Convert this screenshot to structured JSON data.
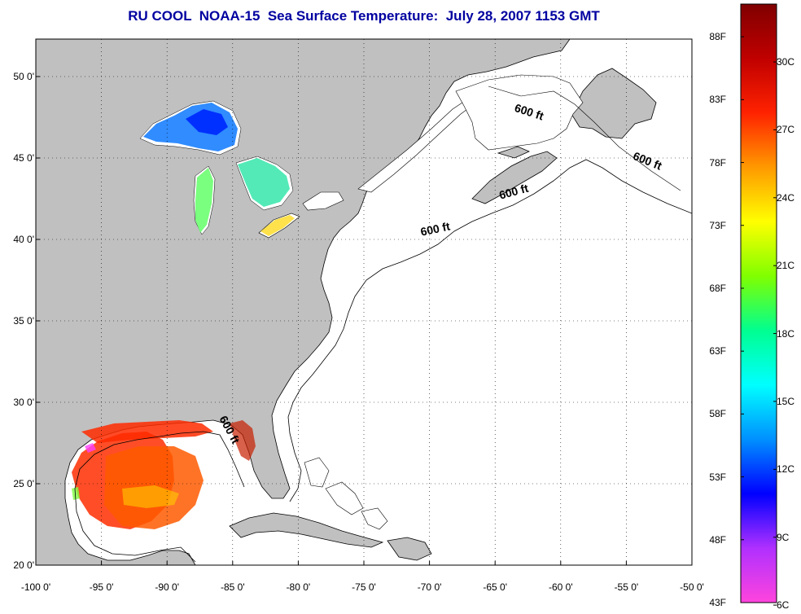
{
  "title": "RU COOL  NOAA-15  Sea Surface Temperature:  July 28, 2007 1153 GMT",
  "map": {
    "lon_range": [
      -100,
      -50
    ],
    "lat_range": [
      20,
      52.3
    ],
    "lat_ticks": [
      {
        "value": 50,
        "label": "50 0'"
      },
      {
        "value": 45,
        "label": "45 0'"
      },
      {
        "value": 40,
        "label": "40 0'"
      },
      {
        "value": 35,
        "label": "35 0'"
      },
      {
        "value": 30,
        "label": "30 0'"
      },
      {
        "value": 25,
        "label": "25 0'"
      },
      {
        "value": 20,
        "label": "20 0'"
      }
    ],
    "lon_ticks": [
      {
        "value": -100,
        "label": "-100 0'"
      },
      {
        "value": -95,
        "label": "-95 0'"
      },
      {
        "value": -90,
        "label": "-90 0'"
      },
      {
        "value": -85,
        "label": "-85 0'"
      },
      {
        "value": -80,
        "label": "-80 0'"
      },
      {
        "value": -75,
        "label": "-75 0'"
      },
      {
        "value": -70,
        "label": "-70 0'"
      },
      {
        "value": -65,
        "label": "-65 0'"
      },
      {
        "value": -60,
        "label": "-60 0'"
      },
      {
        "value": -55,
        "label": "-55 0'"
      },
      {
        "value": -50,
        "label": "-50 0'"
      }
    ],
    "grid": true,
    "land_color": "#c0c0c0",
    "water_color": "#ffffff",
    "contour_labels": [
      {
        "text": "600 ft",
        "lon": -62.5,
        "lat": 47.6,
        "angle": 18
      },
      {
        "text": "600 ft",
        "lon": -53.5,
        "lat": 44.6,
        "angle": 22
      },
      {
        "text": "600 ft",
        "lon": -63.5,
        "lat": 42.7,
        "angle": -15
      },
      {
        "text": "600 ft",
        "lon": -69.5,
        "lat": 40.4,
        "angle": -12
      },
      {
        "text": "600 ft",
        "lon": -85.5,
        "lat": 28.2,
        "angle": 62
      }
    ]
  },
  "colorbar": {
    "fahrenheit_labels": [
      "88F",
      "83F",
      "78F",
      "73F",
      "68F",
      "63F",
      "58F",
      "53F",
      "48F",
      "43F"
    ],
    "celsius_labels": [
      "30C",
      "27C",
      "24C",
      "21C",
      "18C",
      "15C",
      "12C",
      "9C",
      "6C"
    ],
    "colors": [
      "#ff44dd",
      "#b030ff",
      "#0000ff",
      "#0090ff",
      "#00ffff",
      "#00ff90",
      "#80ff00",
      "#ffff00",
      "#ff9900",
      "#ff2200",
      "#c00000",
      "#800000"
    ]
  }
}
